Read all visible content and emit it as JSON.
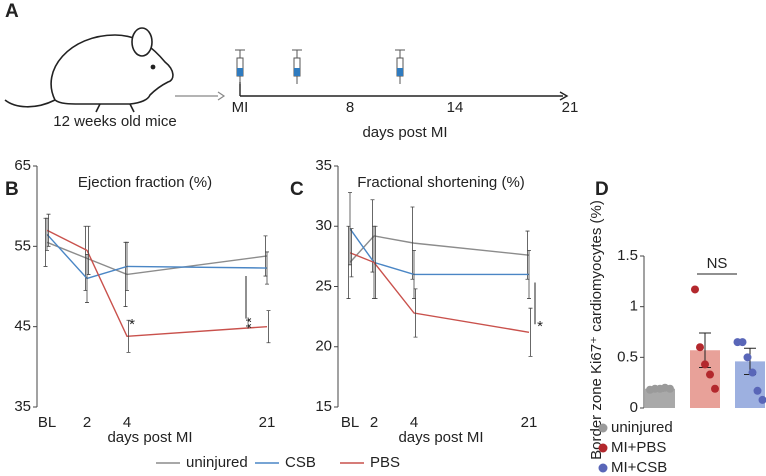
{
  "timeline": {
    "panel": "A",
    "caption": "12 weeks old mice",
    "ticks": [
      "MI",
      "8",
      "14",
      "21"
    ],
    "axis_label": "days post MI"
  },
  "chart_data": [
    {
      "type": "line",
      "panel": "B",
      "title": "Ejection fraction (%)",
      "x_label": "days post MI",
      "categories": [
        "BL",
        "2",
        "4",
        "21"
      ],
      "ylim": [
        35,
        65
      ],
      "yticks": [
        35,
        45,
        55,
        65
      ],
      "series": [
        {
          "name": "uninjured",
          "color": "#8c8c8c",
          "values": [
            55.5,
            53.5,
            51.5,
            53.8
          ],
          "errors": [
            3,
            4,
            4,
            2.5
          ]
        },
        {
          "name": "CSB",
          "color": "#4a86c5",
          "values": [
            56.5,
            51,
            52.5,
            52.3
          ],
          "errors": [
            2,
            3,
            3,
            2
          ]
        },
        {
          "name": "PBS",
          "color": "#c9514c",
          "values": [
            57,
            54.5,
            43.8,
            45
          ],
          "errors": [
            2,
            3,
            2,
            2
          ]
        }
      ],
      "annotations": [
        "*",
        "**"
      ]
    },
    {
      "type": "line",
      "panel": "C",
      "title": "Fractional shortening (%)",
      "x_label": "days post MI",
      "categories": [
        "BL",
        "2",
        "4",
        "21"
      ],
      "ylim": [
        15,
        35
      ],
      "yticks": [
        15,
        20,
        25,
        30,
        35
      ],
      "series": [
        {
          "color": "#8c8c8c",
          "values": [
            27,
            29.2,
            28.6,
            27.6
          ],
          "errors": [
            3,
            3,
            3,
            2
          ]
        },
        {
          "color": "#4a86c5",
          "values": [
            29.8,
            27,
            26,
            26
          ],
          "errors": [
            3,
            3,
            2,
            2
          ]
        },
        {
          "color": "#c9514c",
          "values": [
            27.8,
            27,
            22.8,
            21.2
          ],
          "errors": [
            2,
            3,
            2,
            2
          ]
        }
      ],
      "annotations": [
        "*"
      ]
    },
    {
      "type": "bar",
      "panel": "D",
      "y_label": "Border zone Ki67⁺ cardiomyocytes (%)",
      "categories": [
        "uninjured",
        "MI+PBS",
        "MI+CSB"
      ],
      "ylim": [
        0,
        1.5
      ],
      "yticks": [
        0,
        0.5,
        1,
        1.5
      ],
      "values": [
        0.19,
        0.57,
        0.46
      ],
      "errors": [
        0.02,
        0.17,
        0.13
      ],
      "colors": [
        "#a9a9a9",
        "#e8a199",
        "#9db0e0"
      ],
      "point_colors": [
        "#9a9a9a",
        "#b3282d",
        "#5966b8"
      ],
      "points": [
        [
          0.18,
          0.19,
          0.19,
          0.2,
          0.19
        ],
        [
          1.17,
          0.6,
          0.43,
          0.33,
          0.19
        ],
        [
          0.65,
          0.65,
          0.5,
          0.35,
          0.17,
          0.08
        ]
      ],
      "annotation": "NS"
    }
  ]
}
